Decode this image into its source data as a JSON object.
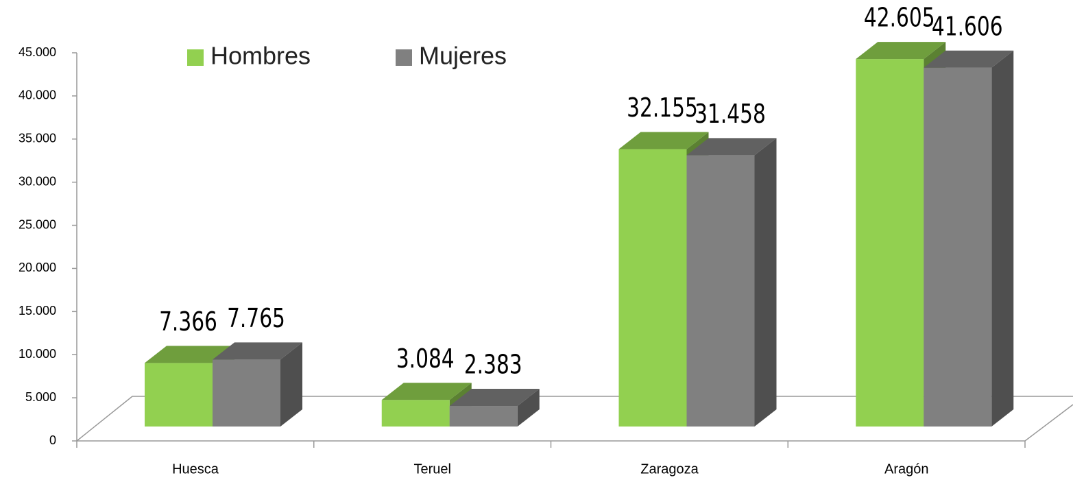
{
  "chart_data": {
    "type": "bar3d",
    "categories": [
      "Huesca",
      "Teruel",
      "Zaragoza",
      "Aragón"
    ],
    "series": [
      {
        "name": "Hombres",
        "color": "#92d050",
        "values": [
          7366,
          3084,
          32155,
          42605
        ],
        "value_labels": [
          "7.366",
          "3.084",
          "32.155",
          "42.605"
        ]
      },
      {
        "name": "Mujeres",
        "color": "#808080",
        "values": [
          7765,
          2383,
          31458,
          41606
        ],
        "value_labels": [
          "7.765",
          "2.383",
          "31.458",
          "41.606"
        ]
      }
    ],
    "ylim": [
      0,
      45000
    ],
    "yticks": [
      0,
      {
        "value": 5000,
        "label": "5.000"
      },
      {
        "value": 10000,
        "label": "10.000"
      },
      {
        "value": 15000,
        "label": "15.000"
      },
      {
        "value": 20000,
        "label": "20.000"
      },
      {
        "value": 25000,
        "label": "25.000"
      },
      {
        "value": 30000,
        "label": "30.000"
      },
      {
        "value": 35000,
        "label": "35.000"
      },
      {
        "value": 40000,
        "label": "40.000"
      },
      {
        "value": 45000,
        "label": "45.000"
      }
    ],
    "legend": "top"
  }
}
